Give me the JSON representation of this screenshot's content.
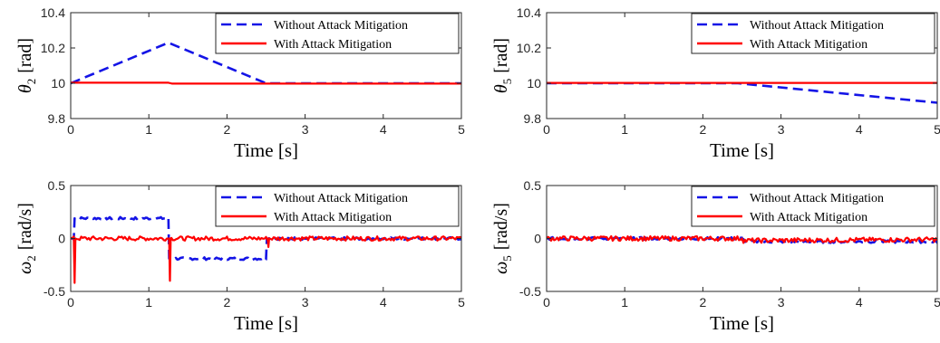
{
  "colors": {
    "without": "#1414e6",
    "with": "#ff0000",
    "axis": "#262626"
  },
  "chart_data": [
    {
      "type": "line",
      "ylabel_symbol": "θ",
      "ylabel_sub": "2",
      "ylabel_unit": "[rad]",
      "xlabel": "Time [s]",
      "xlim": [
        0,
        5
      ],
      "ylim": [
        9.8,
        10.4
      ],
      "xticks": [
        "0",
        "1",
        "2",
        "3",
        "4",
        "5"
      ],
      "yticks": [
        "9.8",
        "10",
        "10.2",
        "10.4"
      ],
      "ytick_values": [
        9.8,
        10,
        10.2,
        10.4
      ],
      "legend": [
        "Without Attack Mitigation",
        "With Attack Mitigation"
      ],
      "series": [
        {
          "name": "Without Attack Mitigation",
          "style": "dashed",
          "x": [
            0,
            1.25,
            2.5,
            5
          ],
          "y": [
            10.0,
            10.23,
            10.0,
            10.0
          ]
        },
        {
          "name": "With Attack Mitigation",
          "style": "solid",
          "x": [
            0,
            1.25,
            1.3,
            5
          ],
          "y": [
            10.003,
            10.003,
            9.998,
            9.998
          ]
        }
      ]
    },
    {
      "type": "line",
      "ylabel_symbol": "θ",
      "ylabel_sub": "5",
      "ylabel_unit": "[rad]",
      "xlabel": "Time [s]",
      "xlim": [
        0,
        5
      ],
      "ylim": [
        9.8,
        10.4
      ],
      "xticks": [
        "0",
        "1",
        "2",
        "3",
        "4",
        "5"
      ],
      "yticks": [
        "9.8",
        "10",
        "10.2",
        "10.4"
      ],
      "ytick_values": [
        9.8,
        10,
        10.2,
        10.4
      ],
      "legend": [
        "Without Attack Mitigation",
        "With Attack Mitigation"
      ],
      "series": [
        {
          "name": "Without Attack Mitigation",
          "style": "dashed",
          "x": [
            0,
            2.45,
            5
          ],
          "y": [
            10.0,
            10.0,
            9.89
          ]
        },
        {
          "name": "With Attack Mitigation",
          "style": "solid",
          "x": [
            0,
            5
          ],
          "y": [
            10.002,
            10.002
          ]
        }
      ]
    },
    {
      "type": "line",
      "ylabel_symbol": "ω",
      "ylabel_sub": "2",
      "ylabel_unit": "[rad/s]",
      "xlabel": "Time [s]",
      "xlim": [
        0,
        5
      ],
      "ylim": [
        -0.5,
        0.5
      ],
      "xticks": [
        "0",
        "1",
        "2",
        "3",
        "4",
        "5"
      ],
      "yticks": [
        "-0.5",
        "0",
        "0.5"
      ],
      "ytick_values": [
        -0.5,
        0,
        0.5
      ],
      "legend": [
        "Without Attack Mitigation",
        "With Attack Mitigation"
      ],
      "series": [
        {
          "name": "Without Attack Mitigation",
          "style": "dashed",
          "x": [
            0,
            0.04,
            0.05,
            1.25,
            1.26,
            2.5,
            2.51,
            5
          ],
          "y": [
            0.0,
            0.0,
            0.19,
            0.19,
            -0.19,
            -0.19,
            0.0,
            0.0
          ],
          "noise": 0.012
        },
        {
          "name": "With Attack Mitigation",
          "style": "solid",
          "x": [
            0,
            0.04,
            0.05,
            0.06,
            1.26,
            1.27,
            1.28,
            2.52,
            2.53,
            2.54,
            5
          ],
          "y": [
            0.0,
            0.0,
            -0.42,
            0.0,
            0.0,
            -0.4,
            0.0,
            0.0,
            -0.08,
            0.0,
            0.0
          ],
          "noise": 0.02
        }
      ]
    },
    {
      "type": "line",
      "ylabel_symbol": "ω",
      "ylabel_sub": "5",
      "ylabel_unit": "[rad/s]",
      "xlabel": "Time [s]",
      "xlim": [
        0,
        5
      ],
      "ylim": [
        -0.5,
        0.5
      ],
      "xticks": [
        "0",
        "1",
        "2",
        "3",
        "4",
        "5"
      ],
      "yticks": [
        "-0.5",
        "0",
        "0.5"
      ],
      "ytick_values": [
        -0.5,
        0,
        0.5
      ],
      "legend": [
        "Without Attack Mitigation",
        "With Attack Mitigation"
      ],
      "series": [
        {
          "name": "Without Attack Mitigation",
          "style": "dashed",
          "x": [
            0,
            2.5,
            2.55,
            5
          ],
          "y": [
            0.0,
            0.0,
            -0.03,
            -0.03
          ],
          "noise": 0.012
        },
        {
          "name": "With Attack Mitigation",
          "style": "solid",
          "x": [
            0,
            2.5,
            2.51,
            5
          ],
          "y": [
            0.0,
            0.0,
            -0.02,
            -0.01
          ],
          "noise": 0.022
        }
      ]
    }
  ]
}
